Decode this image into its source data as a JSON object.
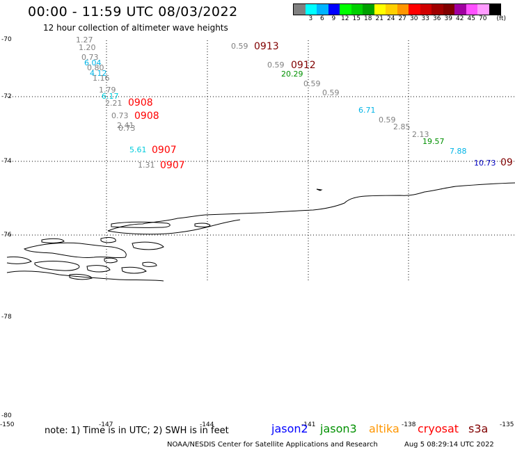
{
  "header": {
    "title": "00:00 - 11:59 UTC 08/03/2022",
    "subtitle": "12 hour collection of altimeter wave heights"
  },
  "colorbar": {
    "colors": [
      "#808080",
      "#00ffff",
      "#00b4ff",
      "#0000ff",
      "#00ff00",
      "#00d000",
      "#00a000",
      "#ffff00",
      "#ffd000",
      "#ff9600",
      "#ff0000",
      "#d00000",
      "#a00000",
      "#800000",
      "#a000a0",
      "#ff50ff",
      "#ff9bff",
      "#000000"
    ],
    "labels": [
      "3",
      "6",
      "9",
      "12",
      "15",
      "18",
      "21",
      "24",
      "27",
      "30",
      "33",
      "36",
      "39",
      "42",
      "45",
      "70"
    ],
    "unit": "(ft)"
  },
  "axes": {
    "lat_labels": [
      "-70",
      "-72",
      "-74",
      "-76",
      "-78",
      "-80"
    ],
    "lon_labels": [
      "-150",
      "-147",
      "-144",
      "-141",
      "-138",
      "-135"
    ]
  },
  "wave_heights": [
    {
      "text": "1.27",
      "color": "#808080"
    },
    {
      "text": "1.20",
      "color": "#808080"
    },
    {
      "text": "0.73",
      "color": "#808080"
    },
    {
      "text": "6.04",
      "color": "#00b4e6"
    },
    {
      "text": "0.80",
      "color": "#808080"
    },
    {
      "text": "4.12",
      "color": "#00b4e6"
    },
    {
      "text": "1.16",
      "color": "#808080"
    },
    {
      "text": "1.79",
      "color": "#808080"
    },
    {
      "text": "6.17",
      "color": "#00ccdd"
    },
    {
      "text": "2.21",
      "color": "#808080"
    },
    {
      "text": "0.73",
      "color": "#808080"
    },
    {
      "text": "2.41",
      "color": "#808080"
    },
    {
      "text": "0.73",
      "color": "#808080"
    },
    {
      "text": "5.61",
      "color": "#00ccdd"
    },
    {
      "text": "1.31",
      "color": "#808080"
    },
    {
      "text": "0.59",
      "color": "#808080"
    },
    {
      "text": "0.59",
      "color": "#808080"
    },
    {
      "text": "20.29",
      "color": "#009000"
    },
    {
      "text": "0.59",
      "color": "#808080"
    },
    {
      "text": "0.59",
      "color": "#808080"
    },
    {
      "text": "6.71",
      "color": "#00b4e6"
    },
    {
      "text": "0.59",
      "color": "#808080"
    },
    {
      "text": "2.85",
      "color": "#808080"
    },
    {
      "text": "2.13",
      "color": "#808080"
    },
    {
      "text": "19.57",
      "color": "#009000"
    },
    {
      "text": "7.88",
      "color": "#00b4e6"
    },
    {
      "text": "10.73",
      "color": "#0000c0"
    }
  ],
  "pass_times": [
    {
      "text": "0913",
      "color": "#800000"
    },
    {
      "text": "0912",
      "color": "#800000"
    },
    {
      "text": "0908",
      "color": "#ff0000"
    },
    {
      "text": "0908",
      "color": "#ff0000"
    },
    {
      "text": "0907",
      "color": "#ff0000"
    },
    {
      "text": "0907",
      "color": "#ff0000"
    },
    {
      "text": "09",
      "color": "#800000"
    }
  ],
  "footer": {
    "note": "note: 1) Time is in UTC; 2) SWH is in feet",
    "legend": [
      {
        "name": "jason2",
        "color": "#0000ff"
      },
      {
        "name": "jason3",
        "color": "#009000"
      },
      {
        "name": "altika",
        "color": "#ff9600"
      },
      {
        "name": "cryosat",
        "color": "#ff0000"
      },
      {
        "name": "s3a",
        "color": "#800000"
      }
    ],
    "credit_source": "NOAA/NESDIS Center for Satellite Applications and Research",
    "credit_time": "Aug  5 08:29:14 UTC 2022"
  }
}
